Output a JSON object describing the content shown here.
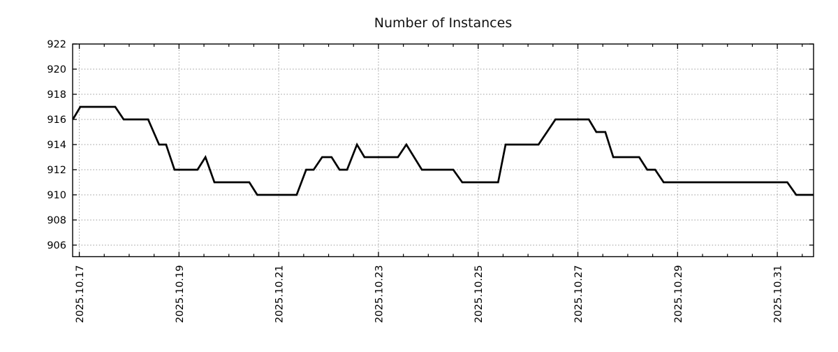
{
  "chart_data": {
    "type": "line",
    "title": "Number of Instances",
    "xlabel": "",
    "ylabel": "",
    "legend": "none",
    "background": "#ffffff",
    "grid": {
      "show": true,
      "style": "dotted",
      "color": "#999999"
    },
    "x_axis": {
      "unit": "date (day of October 2025, fractional)",
      "xlim_days": [
        16.866,
        31.727
      ],
      "major_ticks": [
        {
          "day": 17,
          "label": "2025.10.17"
        },
        {
          "day": 19,
          "label": "2025.10.19"
        },
        {
          "day": 21,
          "label": "2025.10.21"
        },
        {
          "day": 23,
          "label": "2025.10.23"
        },
        {
          "day": 25,
          "label": "2025.10.25"
        },
        {
          "day": 27,
          "label": "2025.10.27"
        },
        {
          "day": 29,
          "label": "2025.10.29"
        },
        {
          "day": 31,
          "label": "2025.10.31"
        }
      ],
      "minor_tick_interval_days": 0.5
    },
    "y_axis": {
      "ylim": [
        905.08,
        922
      ],
      "ticks": [
        906,
        908,
        910,
        912,
        914,
        916,
        918,
        920,
        922
      ]
    },
    "series": [
      {
        "name": "instances",
        "color": "#000000",
        "line_width": 2.7,
        "points_day_value": [
          [
            16.87,
            916
          ],
          [
            17.02,
            917
          ],
          [
            17.72,
            917
          ],
          [
            17.89,
            916
          ],
          [
            18.38,
            916
          ],
          [
            18.6,
            914
          ],
          [
            18.74,
            914
          ],
          [
            18.91,
            912
          ],
          [
            19.37,
            912
          ],
          [
            19.53,
            913
          ],
          [
            19.71,
            911
          ],
          [
            20.41,
            911
          ],
          [
            20.57,
            910
          ],
          [
            21.36,
            910
          ],
          [
            21.55,
            912
          ],
          [
            21.7,
            912
          ],
          [
            21.87,
            913
          ],
          [
            22.06,
            913
          ],
          [
            22.22,
            912
          ],
          [
            22.37,
            912
          ],
          [
            22.57,
            914
          ],
          [
            22.72,
            913
          ],
          [
            23.39,
            913
          ],
          [
            23.56,
            914
          ],
          [
            23.87,
            912
          ],
          [
            24.5,
            912
          ],
          [
            24.68,
            911
          ],
          [
            25.4,
            911
          ],
          [
            25.55,
            914
          ],
          [
            26.21,
            914
          ],
          [
            26.55,
            916
          ],
          [
            27.22,
            916
          ],
          [
            27.37,
            915
          ],
          [
            27.55,
            915
          ],
          [
            27.71,
            913
          ],
          [
            28.23,
            913
          ],
          [
            28.39,
            912
          ],
          [
            28.55,
            912
          ],
          [
            28.72,
            911
          ],
          [
            31.2,
            911
          ],
          [
            31.38,
            910
          ],
          [
            31.73,
            910
          ]
        ]
      }
    ]
  }
}
